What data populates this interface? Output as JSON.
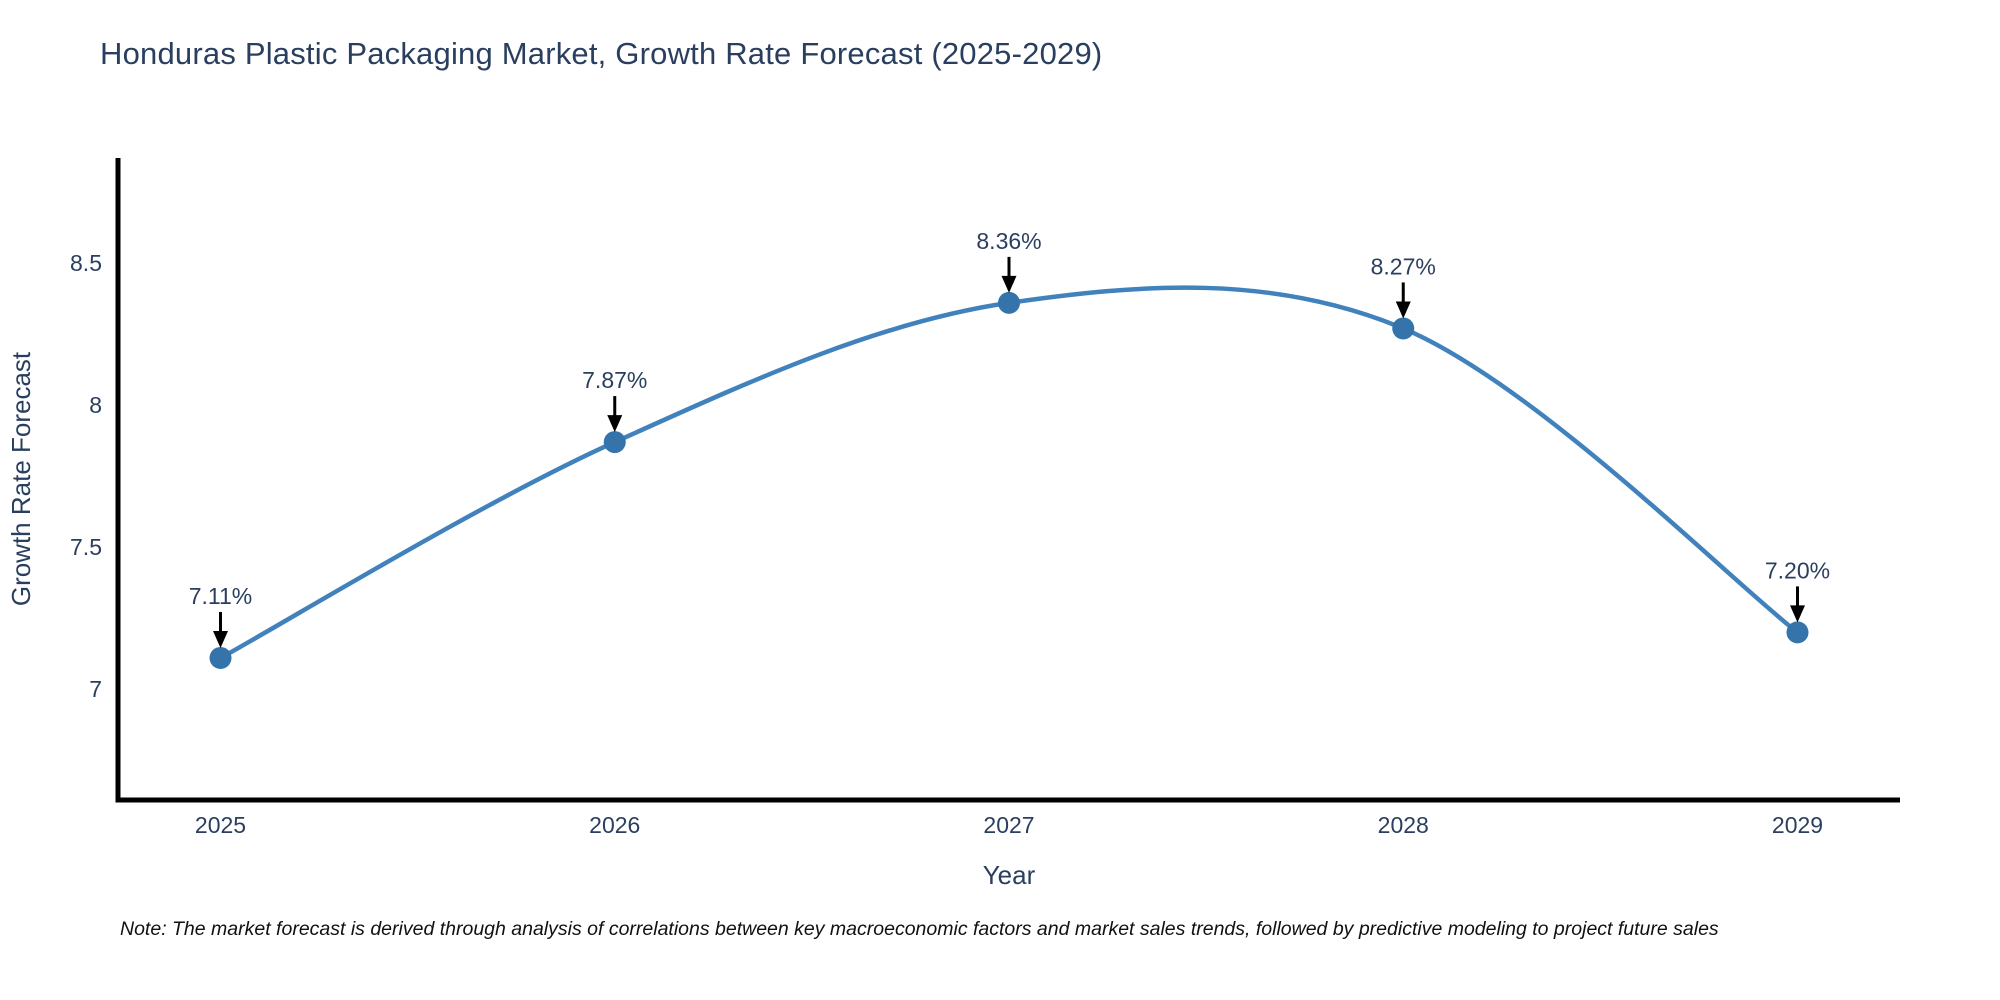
{
  "title": "Honduras Plastic Packaging Market, Growth Rate Forecast (2025-2029)",
  "note": "Note: The market forecast is derived through analysis of correlations between key macroeconomic factors and market sales trends, followed by predictive modeling to project future sales",
  "chart_data": {
    "type": "line",
    "line_shape": "spline",
    "title": "Honduras Plastic Packaging Market, Growth Rate Forecast (2025-2029)",
    "xlabel": "Year",
    "ylabel": "Growth Rate Forecast",
    "x": [
      2025,
      2026,
      2027,
      2028,
      2029
    ],
    "categories": [
      "2025",
      "2026",
      "2027",
      "2028",
      "2029"
    ],
    "series": [
      {
        "name": "Growth Rate Forecast",
        "values": [
          7.11,
          7.87,
          8.36,
          8.27,
          7.2
        ]
      }
    ],
    "point_labels": [
      "7.11%",
      "7.87%",
      "8.36%",
      "8.27%",
      "7.20%"
    ],
    "yticks": [
      7,
      7.5,
      8,
      8.5
    ],
    "ytick_labels": [
      "7",
      "7.5",
      "8",
      "8.5"
    ],
    "ylim": [
      6.61,
      8.87
    ],
    "xlim": [
      2024.74,
      2029.26
    ],
    "grid": false,
    "legend": "none",
    "annotations_have_arrows": true,
    "colors": {
      "line": "#4182bd",
      "marker": "#3474ab",
      "axis": "#000000",
      "text": "#2a3f5f",
      "arrow": "#000000",
      "background": "#ffffff"
    }
  }
}
